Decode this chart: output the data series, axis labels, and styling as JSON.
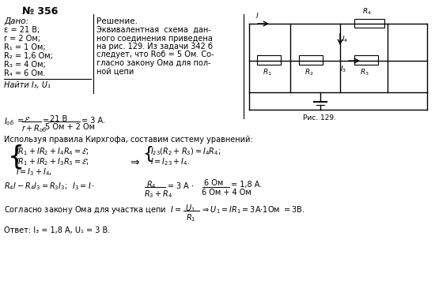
{
  "title": "№ 356",
  "background_color": "#ffffff",
  "text_color": "#000000",
  "given_label": "Дано:",
  "given_items": [
    "ε = 21 В;",
    "r = 2 Ом;",
    "R₁ = 1 Ом;",
    "R₂ = 1,6 Ом;",
    "R₃ = 4 Ом;",
    "R₄ = 6 Ом."
  ],
  "find_label": "Найти I₃, U₁",
  "solution_title": "Решение.",
  "sol_lines": [
    "Эквивалентная  схема  дан-",
    "ного соединения приведена",
    "на рис. 129. Из задачи 342 б",
    "следует, что Rоб = 5 Ом. Со-",
    "гласно закону Ома для пол-",
    "ной цепи"
  ],
  "text_kirchhoff": "Используя правила Кирхгофа, составим систему уравнений:",
  "answer": "Ответ: I₃ = 1,8 А, U₁ = 3 В."
}
